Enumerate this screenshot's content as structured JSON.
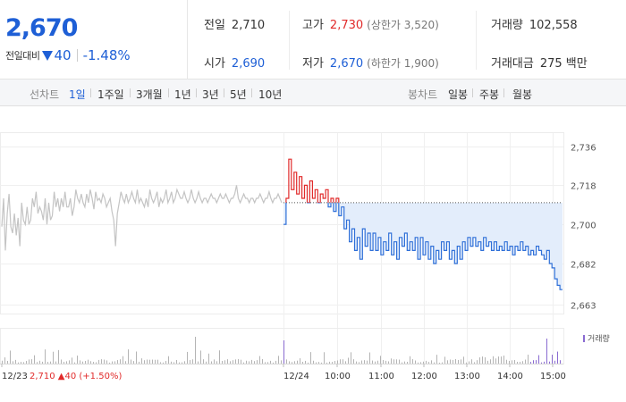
{
  "header": {
    "current_price": "2,670",
    "change_label": "전일대비",
    "change_value": "40",
    "change_rate": "-1.48%",
    "stats": {
      "prev_close": {
        "label": "전일",
        "value": "2,710"
      },
      "open": {
        "label": "시가",
        "value": "2,690"
      },
      "high": {
        "label": "고가",
        "value": "2,730",
        "sub": "(상한가 3,520)"
      },
      "low": {
        "label": "저가",
        "value": "2,670",
        "sub": "(하한가 1,900)"
      },
      "volume": {
        "label": "거래량",
        "value": "102,558"
      },
      "amount": {
        "label": "거래대금",
        "value": "275 백만"
      }
    },
    "colors": {
      "up": "#e12b2b",
      "down": "#1e5fd6"
    }
  },
  "tabs": {
    "line_label": "선차트",
    "line_items": [
      "1일",
      "1주일",
      "3개월",
      "1년",
      "3년",
      "5년",
      "10년"
    ],
    "line_active": 0,
    "candle_label": "봉차트",
    "candle_items": [
      "일봉",
      "주봉",
      "월봉"
    ]
  },
  "chart_data": {
    "type": "line",
    "ylim": [
      2659,
      2742
    ],
    "y_ticks": [
      2736,
      2718,
      2700,
      2682,
      2663
    ],
    "reference_price": 2710,
    "x_tick_labels": [
      "12/23",
      "12/24",
      "10:00",
      "11:00",
      "12:00",
      "13:00",
      "14:00",
      "15:00"
    ],
    "prev_day_label": "12/23",
    "prev_day_summary": "2,710 ▲40 (+1.50%)",
    "volume_legend": "거래량",
    "colors": {
      "prev_day": "#c4c4c4",
      "above_ref": "#e12b2b",
      "below_ref": "#2e6fd8",
      "fill": "#e3edfb",
      "volume": "#b4b4b4",
      "volume_today": "#8a6bd1"
    },
    "prev_day_values": [
      2699,
      2712,
      2688,
      2705,
      2714,
      2699,
      2696,
      2705,
      2695,
      2703,
      2690,
      2710,
      2702,
      2700,
      2708,
      2700,
      2702,
      2712,
      2708,
      2715,
      2705,
      2708,
      2706,
      2702,
      2712,
      2700,
      2710,
      2702,
      2704,
      2715,
      2708,
      2712,
      2706,
      2712,
      2708,
      2715,
      2708,
      2708,
      2712,
      2704,
      2708,
      2716,
      2712,
      2710,
      2714,
      2710,
      2708,
      2714,
      2710,
      2716,
      2712,
      2707,
      2715,
      2711,
      2712,
      2710,
      2714,
      2712,
      2708,
      2710,
      2712,
      2706,
      2702,
      2690,
      2705,
      2710,
      2715,
      2712,
      2710,
      2714,
      2710,
      2712,
      2715,
      2712,
      2710,
      2716,
      2710,
      2712,
      2710,
      2708,
      2712,
      2708,
      2716,
      2712,
      2710,
      2712,
      2715,
      2708,
      2712,
      2710,
      2712,
      2716,
      2710,
      2712,
      2715,
      2710,
      2712,
      2716,
      2714,
      2712,
      2712,
      2715,
      2712,
      2710,
      2712,
      2716,
      2712,
      2710,
      2712,
      2715,
      2712,
      2710,
      2712,
      2712,
      2710,
      2712,
      2714,
      2712,
      2712,
      2710,
      2712,
      2714,
      2712,
      2712,
      2714,
      2712,
      2710,
      2712,
      2712,
      2714,
      2718,
      2712,
      2710,
      2712,
      2714,
      2712,
      2712,
      2710,
      2712,
      2712,
      2710,
      2712,
      2712,
      2714,
      2712,
      2710,
      2712,
      2712,
      2715,
      2712,
      2710,
      2712,
      2712,
      2714,
      2712,
      2710
    ],
    "today_values": [
      2700,
      2712,
      2730,
      2716,
      2724,
      2714,
      2722,
      2712,
      2718,
      2710,
      2720,
      2712,
      2716,
      2710,
      2714,
      2712,
      2716,
      2708,
      2712,
      2706,
      2712,
      2704,
      2708,
      2698,
      2702,
      2692,
      2698,
      2688,
      2694,
      2684,
      2698,
      2690,
      2696,
      2688,
      2696,
      2688,
      2694,
      2686,
      2692,
      2688,
      2696,
      2686,
      2692,
      2684,
      2694,
      2690,
      2696,
      2688,
      2692,
      2688,
      2694,
      2684,
      2694,
      2686,
      2692,
      2684,
      2690,
      2682,
      2688,
      2684,
      2692,
      2688,
      2692,
      2684,
      2688,
      2682,
      2690,
      2684,
      2692,
      2688,
      2694,
      2690,
      2694,
      2690,
      2692,
      2688,
      2694,
      2690,
      2692,
      2688,
      2692,
      2688,
      2690,
      2688,
      2692,
      2688,
      2690,
      2686,
      2690,
      2688,
      2692,
      2688,
      2690,
      2686,
      2688,
      2686,
      2690,
      2688,
      2686,
      2684,
      2688,
      2682,
      2680,
      2675,
      2672,
      2670,
      2670
    ]
  }
}
